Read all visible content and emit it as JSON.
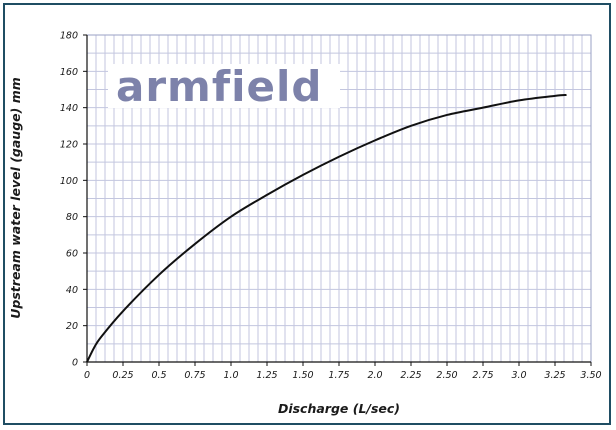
{
  "logo": {
    "text": "armfield",
    "color": "#7d82aa"
  },
  "chart_data": {
    "type": "line",
    "xlabel": "Discharge (L/sec)",
    "ylabel": "Upstream water level (gauge) mm",
    "xlim": [
      0,
      3.5
    ],
    "ylim": [
      0,
      180
    ],
    "x_tick_labels": [
      "0",
      "0.25",
      "0.5",
      "0.75",
      "1.0",
      "1.25",
      "1.50",
      "1.75",
      "2.0",
      "2.25",
      "2.50",
      "2.75",
      "3.0",
      "3.25",
      "3.50"
    ],
    "x_tick_values": [
      0,
      0.25,
      0.5,
      0.75,
      1.0,
      1.25,
      1.5,
      1.75,
      2.0,
      2.25,
      2.5,
      2.75,
      3.0,
      3.25,
      3.5
    ],
    "y_tick_labels": [
      "0",
      "20",
      "40",
      "60",
      "80",
      "100",
      "120",
      "140",
      "160",
      "180"
    ],
    "y_tick_values": [
      0,
      20,
      40,
      60,
      80,
      100,
      120,
      140,
      160,
      180
    ],
    "grid": true,
    "grid_color": "#c3c6df",
    "line_color": "#111111",
    "series": [
      {
        "x": [
          0,
          0.05,
          0.1,
          0.25,
          0.5,
          0.75,
          1.0,
          1.25,
          1.5,
          1.75,
          2.0,
          2.25,
          2.5,
          2.75,
          3.0,
          3.25,
          3.33
        ],
        "values": [
          0,
          8,
          14,
          28,
          48,
          65,
          80,
          92,
          103,
          113,
          122,
          130,
          136,
          140,
          144,
          146.5,
          147
        ]
      }
    ]
  }
}
